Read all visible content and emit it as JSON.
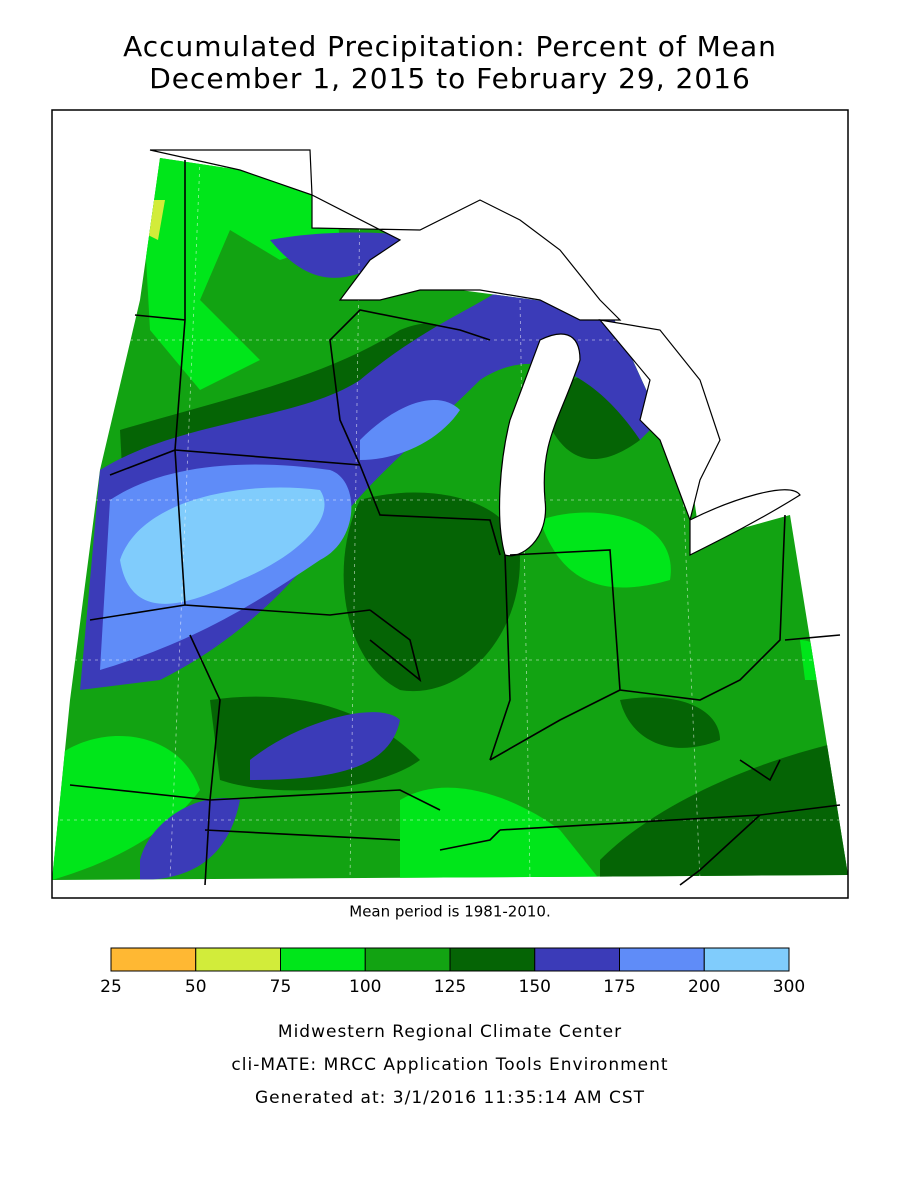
{
  "header": {
    "title": "Accumulated Precipitation: Percent of Mean",
    "subtitle": "December 1, 2015 to February 29, 2016"
  },
  "note": "Mean period is 1981-2010.",
  "legend": {
    "bins": [
      25,
      50,
      75,
      100,
      125,
      150,
      175,
      200,
      300
    ],
    "colors": [
      "#ffb833",
      "#d2ec3a",
      "#00e61a",
      "#12a312",
      "#056405",
      "#3b3bb8",
      "#5f8cf8",
      "#80ccfc"
    ]
  },
  "footer": {
    "lines": [
      "Midwestern Regional Climate Center",
      "cli-MATE: MRCC Application Tools Environment",
      "Generated at: 3/1/2016 11:35:14 AM CST"
    ]
  }
}
